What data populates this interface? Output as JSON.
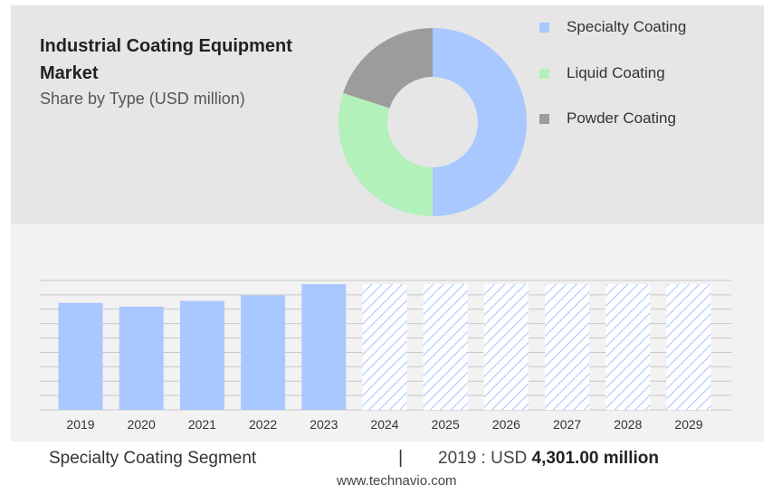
{
  "header": {
    "title": "Industrial Coating Equipment Market",
    "subtitle": "Share by Type (USD million)"
  },
  "legend": [
    {
      "label": "Specialty Coating",
      "color": "#a9c8ff"
    },
    {
      "label": "Liquid Coating",
      "color": "#b3f1bb"
    },
    {
      "label": "Powder Coating",
      "color": "#9c9c9c"
    }
  ],
  "chart_data": [
    {
      "type": "pie",
      "style": "donut",
      "title": "Share by Type (USD million)",
      "labels": [
        "Specialty Coating",
        "Liquid Coating",
        "Powder Coating"
      ],
      "values": [
        50,
        30,
        20
      ],
      "colors": [
        "#a9c8ff",
        "#b3f1bb",
        "#9c9c9c"
      ]
    },
    {
      "type": "bar",
      "categories": [
        "2019",
        "2020",
        "2021",
        "2022",
        "2023",
        "2024",
        "2025",
        "2026",
        "2027",
        "2028",
        "2029"
      ],
      "values": [
        4301,
        4150,
        4380,
        4600,
        5050,
        5050,
        5050,
        5050,
        5050,
        5050,
        5050
      ],
      "forecast": [
        false,
        false,
        false,
        false,
        false,
        true,
        true,
        true,
        true,
        true,
        true
      ],
      "ylim": [
        0,
        5200
      ],
      "color": "#a9c8ff",
      "grid": true
    }
  ],
  "footer": {
    "segment": "Specialty Coating Segment",
    "separator": "|",
    "value_prefix": "2019 : USD ",
    "value_bold": "4,301.00 million",
    "website": "www.technavio.com"
  }
}
